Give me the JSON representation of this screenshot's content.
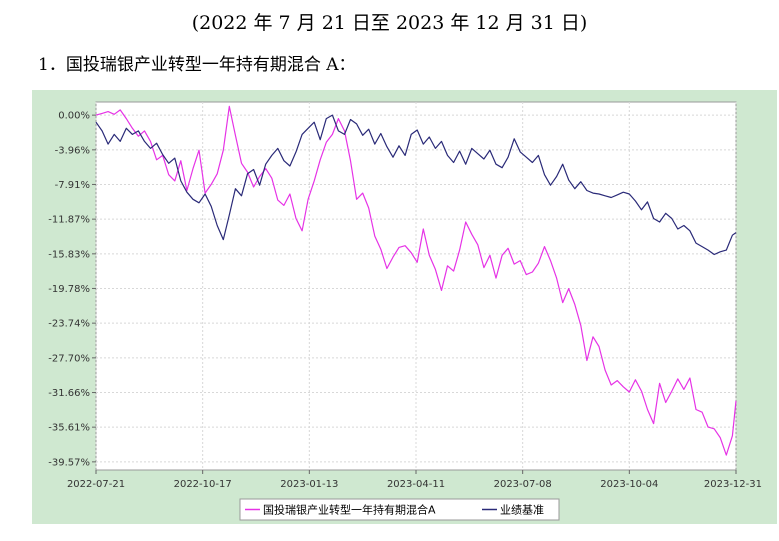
{
  "page": {
    "period": "(2022 年 7 月 21 日至 2023 年 12 月 31 日)",
    "heading": "1．国投瑞银产业转型一年持有期混合 A："
  },
  "colors": {
    "fund": "#e633e6",
    "benchmark": "#2a2a78",
    "panel_bg": "#cfe8d0",
    "grid": "#d8d8d8"
  },
  "chart_data": {
    "type": "line",
    "title": "",
    "xlabel": "",
    "ylabel": "",
    "ylim": [
      -40.5,
      1.5
    ],
    "grid": true,
    "legend_position": "bottom",
    "y_ticks": [
      "0.00%",
      "-3.96%",
      "-7.91%",
      "-11.87%",
      "-15.83%",
      "-19.78%",
      "-23.74%",
      "-27.70%",
      "-31.66%",
      "-35.61%",
      "-39.57%"
    ],
    "y_tick_values": [
      0.0,
      -3.96,
      -7.91,
      -11.87,
      -15.83,
      -19.78,
      -23.74,
      -27.7,
      -31.66,
      -35.61,
      -39.57
    ],
    "x_ticks": [
      "2022-07-21",
      "2022-10-17",
      "2023-01-13",
      "2023-04-11",
      "2023-07-08",
      "2023-10-04",
      "2023-12-31"
    ],
    "x_tick_values": [
      0,
      88,
      176,
      264,
      352,
      440,
      528
    ],
    "series": [
      {
        "name": "国投瑞银产业转型一年持有期混合A",
        "color": "#e633e6",
        "x": [
          0,
          5,
          10,
          15,
          20,
          25,
          30,
          35,
          40,
          45,
          50,
          55,
          60,
          65,
          70,
          75,
          80,
          85,
          90,
          95,
          100,
          105,
          110,
          115,
          120,
          125,
          130,
          135,
          140,
          145,
          150,
          155,
          160,
          165,
          170,
          175,
          180,
          185,
          190,
          195,
          200,
          205,
          210,
          215,
          220,
          225,
          230,
          235,
          240,
          245,
          250,
          255,
          260,
          265,
          270,
          275,
          280,
          285,
          290,
          295,
          300,
          305,
          310,
          315,
          320,
          325,
          330,
          335,
          340,
          345,
          350,
          355,
          360,
          365,
          370,
          375,
          380,
          385,
          390,
          395,
          400,
          405,
          410,
          415,
          420,
          425,
          430,
          435,
          440,
          445,
          450,
          455,
          460,
          465,
          470,
          475,
          480,
          485,
          490,
          495,
          500,
          505,
          510,
          515,
          520,
          525,
          528
        ],
        "values": [
          0,
          0.2,
          0.4,
          0.1,
          0.6,
          -0.4,
          -1.5,
          -2.4,
          -1.8,
          -3.0,
          -5.1,
          -4.6,
          -6.8,
          -7.5,
          -5.2,
          -8.6,
          -6.1,
          -4.0,
          -8.9,
          -7.9,
          -6.7,
          -4.0,
          1.0,
          -2.3,
          -5.5,
          -6.5,
          -8.2,
          -7.0,
          -6.1,
          -7.2,
          -9.7,
          -10.3,
          -9.0,
          -11.8,
          -13.2,
          -9.6,
          -7.5,
          -5.1,
          -3.1,
          -2.2,
          -0.4,
          -1.8,
          -5.2,
          -9.6,
          -8.9,
          -10.6,
          -13.8,
          -15.3,
          -17.5,
          -16.2,
          -15.1,
          -14.9,
          -15.7,
          -16.8,
          -13.0,
          -16.0,
          -17.6,
          -20.0,
          -17.2,
          -17.8,
          -15.4,
          -12.2,
          -13.6,
          -14.8,
          -17.4,
          -16.0,
          -18.6,
          -16.0,
          -15.2,
          -17.0,
          -16.6,
          -18.2,
          -17.9,
          -16.9,
          -15.0,
          -16.6,
          -18.6,
          -21.4,
          -19.8,
          -21.6,
          -24.0,
          -28.0,
          -25.3,
          -26.4,
          -29.1,
          -30.8,
          -30.3,
          -31.0,
          -31.6,
          -30.2,
          -31.5,
          -33.6,
          -35.2,
          -30.6,
          -32.8,
          -31.5,
          -30.1,
          -31.3,
          -30.0,
          -33.6,
          -33.9,
          -35.6,
          -35.8,
          -36.8,
          -38.8,
          -36.6,
          -32.6
        ]
      },
      {
        "name": "业绩基准",
        "color": "#2a2a78",
        "x": [
          0,
          5,
          10,
          15,
          20,
          25,
          30,
          35,
          40,
          45,
          50,
          55,
          60,
          65,
          70,
          75,
          80,
          85,
          90,
          95,
          100,
          105,
          110,
          115,
          120,
          125,
          130,
          135,
          140,
          145,
          150,
          155,
          160,
          165,
          170,
          175,
          180,
          185,
          190,
          195,
          200,
          205,
          210,
          215,
          220,
          225,
          230,
          235,
          240,
          245,
          250,
          255,
          260,
          265,
          270,
          275,
          280,
          285,
          290,
          295,
          300,
          305,
          310,
          315,
          320,
          325,
          330,
          335,
          340,
          345,
          350,
          355,
          360,
          365,
          370,
          375,
          380,
          385,
          390,
          395,
          400,
          405,
          410,
          415,
          420,
          425,
          430,
          435,
          440,
          445,
          450,
          455,
          460,
          465,
          470,
          475,
          480,
          485,
          490,
          495,
          500,
          505,
          510,
          515,
          520,
          525,
          528
        ],
        "values": [
          -0.8,
          -1.8,
          -3.3,
          -2.2,
          -3.0,
          -1.5,
          -2.2,
          -1.8,
          -3.0,
          -3.8,
          -3.2,
          -4.5,
          -5.5,
          -4.9,
          -7.5,
          -8.8,
          -9.6,
          -10.0,
          -9.0,
          -10.4,
          -12.6,
          -14.2,
          -11.4,
          -8.4,
          -9.2,
          -6.7,
          -6.2,
          -8.0,
          -5.6,
          -4.6,
          -3.8,
          -5.2,
          -5.8,
          -4.2,
          -2.2,
          -1.5,
          -0.8,
          -2.8,
          -0.4,
          0.0,
          -1.8,
          -2.2,
          -0.5,
          -1.0,
          -2.3,
          -1.6,
          -3.3,
          -2.1,
          -3.6,
          -4.8,
          -3.5,
          -4.6,
          -2.2,
          -1.7,
          -3.3,
          -2.5,
          -3.8,
          -3.0,
          -4.6,
          -5.4,
          -4.1,
          -5.6,
          -3.8,
          -4.4,
          -5.0,
          -4.0,
          -5.6,
          -6.0,
          -4.8,
          -2.7,
          -4.2,
          -4.8,
          -5.4,
          -4.6,
          -6.8,
          -8.0,
          -7.0,
          -5.6,
          -7.4,
          -8.4,
          -7.6,
          -8.6,
          -8.9,
          -9.0,
          -9.2,
          -9.4,
          -9.1,
          -8.8,
          -9.0,
          -9.8,
          -10.8,
          -9.9,
          -11.8,
          -12.2,
          -11.2,
          -11.8,
          -13.0,
          -12.6,
          -13.2,
          -14.6,
          -15.0,
          -15.4,
          -15.9,
          -15.6,
          -15.4,
          -13.7,
          -13.4
        ]
      }
    ]
  }
}
